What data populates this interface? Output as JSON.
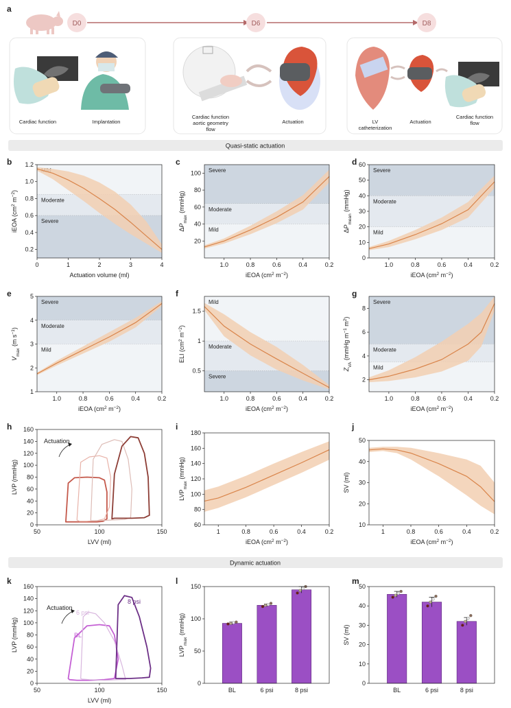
{
  "panel_a": {
    "letter": "a",
    "timeline": {
      "days": [
        "D0",
        "D6",
        "D8"
      ],
      "color": "#b56a6a",
      "badge_fill": "#f6dede"
    },
    "boxes": [
      {
        "labels": [
          "Cardiac function",
          "Implantation"
        ]
      },
      {
        "labels": [
          "Cardiac function\naortic geometry\nflow",
          "Actuation"
        ]
      },
      {
        "labels": [
          "LV\ncatheterization",
          "Actuation",
          "Cardiac function\nflow"
        ]
      }
    ]
  },
  "sections": [
    "Quasi-static actuation",
    "Dynamic actuation"
  ],
  "colors": {
    "line": "#d9844a",
    "band": "#f2cfb2",
    "severe": "#cdd6e0",
    "moderate": "#e4e9ef",
    "mild": "#f1f4f7",
    "bar": "#9b4fc4",
    "bar_edge": "#5b2a7a"
  },
  "chart_data": [
    {
      "id": "b",
      "type": "line",
      "xlabel": "Actuation volume (ml)",
      "ylabel": "iEOA (cm2 m-2)",
      "xlim": [
        0,
        4
      ],
      "ylim": [
        0.1,
        1.2
      ],
      "xticks": [
        0,
        1,
        2,
        3,
        4
      ],
      "yticks": [
        0.2,
        0.4,
        0.6,
        0.8,
        1.0,
        1.2
      ],
      "zones": [
        {
          "label": "Mild",
          "from": 0.85,
          "to": 1.2
        },
        {
          "label": "Moderate",
          "from": 0.6,
          "to": 0.85
        },
        {
          "label": "Severe",
          "from": 0.1,
          "to": 0.6
        }
      ],
      "x": [
        0,
        0.5,
        1,
        1.5,
        2,
        2.5,
        3,
        3.5,
        4
      ],
      "y": [
        1.15,
        1.1,
        1.02,
        0.92,
        0.8,
        0.67,
        0.52,
        0.36,
        0.2
      ],
      "lower": [
        1.13,
        1.03,
        0.9,
        0.77,
        0.63,
        0.5,
        0.38,
        0.27,
        0.16
      ],
      "upper": [
        1.17,
        1.15,
        1.12,
        1.07,
        0.99,
        0.88,
        0.73,
        0.53,
        0.26
      ]
    },
    {
      "id": "c",
      "type": "line",
      "xlabel": "iEOA (cm2 m-2)",
      "ylabel": "ΔPmax (mmHg)",
      "xlim": [
        1.15,
        0.2
      ],
      "ylim": [
        0,
        110
      ],
      "xticks": [
        1.0,
        0.8,
        0.6,
        0.4,
        0.2
      ],
      "yticks": [
        20,
        40,
        60,
        80,
        100
      ],
      "zones": [
        {
          "label": "Severe",
          "from": 64,
          "to": 110
        },
        {
          "label": "Moderate",
          "from": 40,
          "to": 64
        },
        {
          "label": "Mild",
          "from": 0,
          "to": 40
        }
      ],
      "x": [
        1.15,
        1.0,
        0.8,
        0.6,
        0.4,
        0.2
      ],
      "y": [
        13,
        20,
        33,
        48,
        66,
        96
      ],
      "lower": [
        11,
        17,
        28,
        41,
        57,
        89
      ],
      "upper": [
        15,
        23,
        38,
        55,
        74,
        104
      ]
    },
    {
      "id": "d",
      "type": "line",
      "xlabel": "iEOA (cm2 m-2)",
      "ylabel": "ΔPmean (mmHg)",
      "xlim": [
        1.15,
        0.2
      ],
      "ylim": [
        0,
        60
      ],
      "xticks": [
        1.0,
        0.8,
        0.6,
        0.4,
        0.2
      ],
      "yticks": [
        0,
        10,
        20,
        30,
        40,
        50,
        60
      ],
      "zones": [
        {
          "label": "Severe",
          "from": 40,
          "to": 60
        },
        {
          "label": "Moderate",
          "from": 20,
          "to": 40
        },
        {
          "label": "Mild",
          "from": 0,
          "to": 20
        }
      ],
      "x": [
        1.15,
        1.0,
        0.8,
        0.6,
        0.4,
        0.2
      ],
      "y": [
        6,
        9,
        15,
        22,
        31,
        49
      ],
      "lower": [
        5,
        7,
        12,
        18,
        26,
        45
      ],
      "upper": [
        7,
        11,
        18,
        26,
        36,
        53
      ]
    },
    {
      "id": "e",
      "type": "line",
      "xlabel": "iEOA (cm2 m-2)",
      "ylabel": "Vmax (m s-1)",
      "xlim": [
        1.15,
        0.2
      ],
      "ylim": [
        1,
        5
      ],
      "xticks": [
        1.0,
        0.8,
        0.6,
        0.4,
        0.2
      ],
      "yticks": [
        1,
        2,
        3,
        4,
        5
      ],
      "zones": [
        {
          "label": "Severe",
          "from": 4,
          "to": 5
        },
        {
          "label": "Moderate",
          "from": 3,
          "to": 4
        },
        {
          "label": "Mild",
          "from": 1,
          "to": 3
        }
      ],
      "x": [
        1.15,
        1.0,
        0.8,
        0.6,
        0.4,
        0.2
      ],
      "y": [
        1.75,
        2.2,
        2.75,
        3.3,
        3.9,
        4.7
      ],
      "lower": [
        1.7,
        2.1,
        2.6,
        3.1,
        3.7,
        4.6
      ],
      "upper": [
        1.8,
        2.3,
        2.9,
        3.5,
        4.1,
        4.8
      ]
    },
    {
      "id": "f",
      "type": "line",
      "xlabel": "iEOA (cm2 m-2)",
      "ylabel": "ELI (cm2 m-2)",
      "xlim": [
        1.15,
        0.2
      ],
      "ylim": [
        0.15,
        1.75
      ],
      "xticks": [
        1.0,
        0.8,
        0.6,
        0.4,
        0.2
      ],
      "yticks": [
        0.5,
        1.0,
        1.5
      ],
      "zones": [
        {
          "label": "Mild",
          "from": 1.0,
          "to": 1.75
        },
        {
          "label": "Moderate",
          "from": 0.5,
          "to": 1.0
        },
        {
          "label": "Severe",
          "from": 0.15,
          "to": 0.5
        }
      ],
      "x": [
        1.15,
        1.0,
        0.8,
        0.6,
        0.4,
        0.2
      ],
      "y": [
        1.58,
        1.25,
        0.95,
        0.7,
        0.46,
        0.22
      ],
      "lower": [
        1.52,
        1.08,
        0.76,
        0.52,
        0.34,
        0.19
      ],
      "upper": [
        1.64,
        1.45,
        1.15,
        0.9,
        0.6,
        0.26
      ]
    },
    {
      "id": "g",
      "type": "line",
      "xlabel": "iEOA (cm2 m-2)",
      "ylabel": "ZVA (mmHg m-1 m2)",
      "xlim": [
        1.15,
        0.2
      ],
      "ylim": [
        1,
        9
      ],
      "xticks": [
        1.0,
        0.8,
        0.6,
        0.4,
        0.2
      ],
      "yticks": [
        2,
        4,
        6,
        8
      ],
      "zones": [
        {
          "label": "Severe",
          "from": 5,
          "to": 9
        },
        {
          "label": "Moderate",
          "from": 3.5,
          "to": 5
        },
        {
          "label": "Mild",
          "from": 1,
          "to": 3.5
        }
      ],
      "x": [
        1.15,
        1.0,
        0.8,
        0.6,
        0.4,
        0.3,
        0.2
      ],
      "y": [
        2.0,
        2.3,
        2.9,
        3.7,
        5.0,
        6.0,
        8.4
      ],
      "lower": [
        1.8,
        1.9,
        2.2,
        2.7,
        3.6,
        4.8,
        7.8
      ],
      "upper": [
        2.2,
        2.8,
        3.9,
        5.2,
        6.7,
        7.6,
        9.0
      ]
    },
    {
      "id": "h",
      "type": "line",
      "xlabel": "LVV (ml)",
      "ylabel": "LVP (mmHg)",
      "xlim": [
        50,
        150
      ],
      "ylim": [
        0,
        160
      ],
      "xticks": [
        50,
        100,
        150
      ],
      "yticks": [
        0,
        20,
        40,
        60,
        80,
        100,
        120,
        140,
        160
      ],
      "annotation": "Actuation",
      "series": [
        {
          "color": "#c4584a",
          "width": 1.8,
          "x": [
            73,
            75,
            80,
            90,
            100,
            104,
            106,
            106,
            103,
            98,
            90,
            82,
            76,
            73
          ],
          "y": [
            5,
            70,
            79,
            80,
            79,
            75,
            55,
            10,
            6,
            5,
            5,
            5,
            5,
            5
          ]
        },
        {
          "color": "#e8b2a8",
          "width": 1.2,
          "x": [
            82,
            85,
            92,
            100,
            106,
            109,
            108,
            104,
            98,
            90,
            84,
            82
          ],
          "y": [
            8,
            105,
            114,
            116,
            112,
            80,
            30,
            10,
            7,
            6,
            6,
            8
          ]
        },
        {
          "color": "#ddbcb6",
          "width": 1.2,
          "x": [
            93,
            95,
            102,
            112,
            118,
            123,
            126,
            125,
            120,
            110,
            100,
            94,
            93
          ],
          "y": [
            7,
            110,
            135,
            143,
            140,
            110,
            60,
            12,
            9,
            8,
            7,
            7,
            7
          ]
        },
        {
          "color": "#8c3c34",
          "width": 1.8,
          "x": [
            110,
            112,
            118,
            125,
            131,
            136,
            139,
            140,
            136,
            126,
            118,
            112,
            110
          ],
          "y": [
            10,
            85,
            132,
            148,
            146,
            120,
            80,
            16,
            12,
            11,
            11,
            11,
            10
          ]
        }
      ]
    },
    {
      "id": "i",
      "type": "line",
      "xlabel": "iEOA (cm2 m-2)",
      "ylabel": "LVPmax (mmHg)",
      "xlim": [
        1.1,
        0.2
      ],
      "ylim": [
        60,
        180
      ],
      "xticks": [
        1,
        0.8,
        0.6,
        0.4,
        0.2
      ],
      "yticks": [
        60,
        80,
        100,
        120,
        140,
        160,
        180
      ],
      "x": [
        1.1,
        1.0,
        0.8,
        0.6,
        0.4,
        0.2
      ],
      "y": [
        91,
        95,
        109,
        125,
        141,
        158
      ],
      "lower": [
        77,
        82,
        96,
        112,
        128,
        145
      ],
      "upper": [
        105,
        110,
        124,
        140,
        155,
        169
      ]
    },
    {
      "id": "j",
      "type": "line",
      "xlabel": "iEOA (cm2 m-2)",
      "ylabel": "SV (ml)",
      "xlim": [
        1.1,
        0.2
      ],
      "ylim": [
        10,
        50
      ],
      "xticks": [
        1,
        0.8,
        0.6,
        0.4,
        0.2
      ],
      "yticks": [
        10,
        20,
        30,
        40,
        50
      ],
      "x": [
        1.1,
        1.0,
        0.9,
        0.8,
        0.6,
        0.4,
        0.3,
        0.2
      ],
      "y": [
        45.5,
        46,
        45.5,
        44,
        39,
        33,
        28,
        21
      ],
      "lower": [
        44.5,
        45,
        44,
        41,
        33,
        24,
        19,
        15
      ],
      "upper": [
        46.5,
        47,
        47,
        46.5,
        44,
        41,
        38,
        30
      ]
    },
    {
      "id": "k",
      "type": "line",
      "xlabel": "LVV (ml)",
      "ylabel": "LVP (mmHg)",
      "xlim": [
        50,
        150
      ],
      "ylim": [
        0,
        160
      ],
      "xticks": [
        50,
        100,
        150
      ],
      "yticks": [
        0,
        20,
        40,
        60,
        80,
        100,
        120,
        140,
        160
      ],
      "annotation": "Actuation",
      "series": [
        {
          "name": "BL",
          "color": "#c45fd4",
          "width": 1.8,
          "x": [
            75,
            80,
            90,
            100,
            108,
            112,
            115,
            112,
            104,
            92,
            82,
            76,
            75
          ],
          "y": [
            8,
            75,
            95,
            97,
            95,
            80,
            40,
            8,
            6,
            5,
            5,
            6,
            8
          ]
        },
        {
          "name": "6 psi",
          "color": "#d8b6de",
          "width": 1.2,
          "x": [
            85,
            87,
            91,
            97,
            104,
            112,
            118,
            121,
            116,
            104,
            92,
            86,
            85
          ],
          "y": [
            8,
            110,
            118,
            115,
            100,
            70,
            30,
            6,
            6,
            5,
            6,
            7,
            8
          ]
        },
        {
          "name": "8 psi",
          "color": "#6c2f86",
          "width": 1.8,
          "x": [
            113,
            115,
            120,
            126,
            132,
            138,
            141,
            140,
            134,
            124,
            116,
            113
          ],
          "y": [
            8,
            130,
            145,
            142,
            110,
            60,
            25,
            10,
            9,
            8,
            8,
            8
          ]
        }
      ]
    },
    {
      "id": "l",
      "type": "bar",
      "ylabel": "LVPmax (mmHg)",
      "categories": [
        "BL",
        "6 psi",
        "8 psi"
      ],
      "values": [
        93,
        121,
        145
      ],
      "errors": [
        2,
        2,
        5
      ],
      "ylim": [
        0,
        150
      ],
      "yticks": [
        0,
        50,
        100,
        150
      ],
      "points": [
        [
          92,
          93,
          94,
          95
        ],
        [
          119,
          121,
          122,
          124
        ],
        [
          140,
          144,
          147,
          150
        ]
      ]
    },
    {
      "id": "m",
      "type": "bar",
      "ylabel": "SV (ml)",
      "categories": [
        "BL",
        "6 psi",
        "8 psi"
      ],
      "values": [
        46,
        42,
        32
      ],
      "errors": [
        1.5,
        2.5,
        2
      ],
      "ylim": [
        0,
        50
      ],
      "yticks": [
        0,
        10,
        20,
        30,
        40,
        50
      ],
      "points": [
        [
          44.5,
          45.5,
          46.5,
          47.5
        ],
        [
          40,
          42,
          43.5,
          45
        ],
        [
          30,
          32,
          33.5,
          35
        ]
      ]
    }
  ]
}
